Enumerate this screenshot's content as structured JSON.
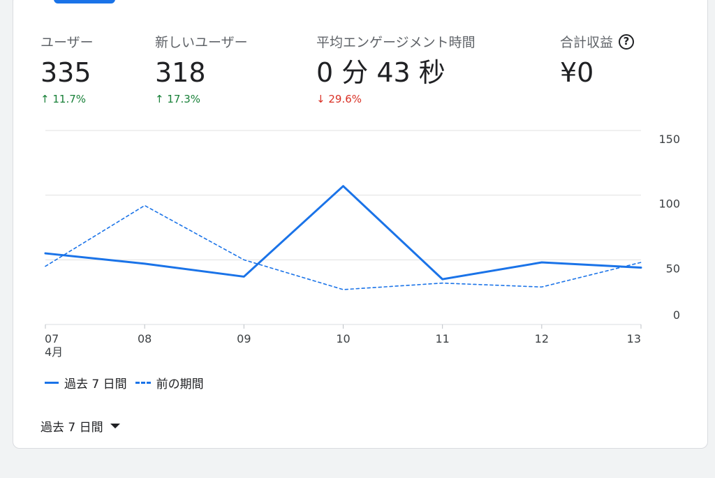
{
  "metrics": [
    {
      "label": "ユーザー",
      "value": "335",
      "change": "11.7%",
      "direction": "up",
      "arrow": "↑"
    },
    {
      "label": "新しいユーザー",
      "value": "318",
      "change": "17.3%",
      "direction": "up",
      "arrow": "↑"
    },
    {
      "label": "平均エンゲージメント時間",
      "value": "0 分 43 秒",
      "change": "29.6%",
      "direction": "down",
      "arrow": "↓"
    },
    {
      "label": "合計収益",
      "value": "¥0",
      "help_icon": "help-circle-icon"
    }
  ],
  "chart_data": {
    "type": "line",
    "categories": [
      "07",
      "08",
      "09",
      "10",
      "11",
      "12",
      "13"
    ],
    "x_sublabel": "4月",
    "series": [
      {
        "name": "過去 7 日間",
        "style": "solid",
        "color": "#1a73e8",
        "values": [
          55,
          47,
          37,
          107,
          35,
          48,
          44
        ]
      },
      {
        "name": "前の期間",
        "style": "dashed",
        "color": "#1a73e8",
        "values": [
          45,
          92,
          50,
          27,
          32,
          29,
          48
        ]
      }
    ],
    "y_ticks": [
      150,
      100,
      50,
      0
    ],
    "ylim": [
      0,
      150
    ],
    "grid": true,
    "legend": "bottom-left"
  },
  "legend": {
    "current": "過去 7 日間",
    "previous": "前の期間"
  },
  "period_selector": {
    "label": "過去 7 日間"
  },
  "colors": {
    "accent": "#1a73e8",
    "up": "#188038",
    "down": "#d93025"
  }
}
